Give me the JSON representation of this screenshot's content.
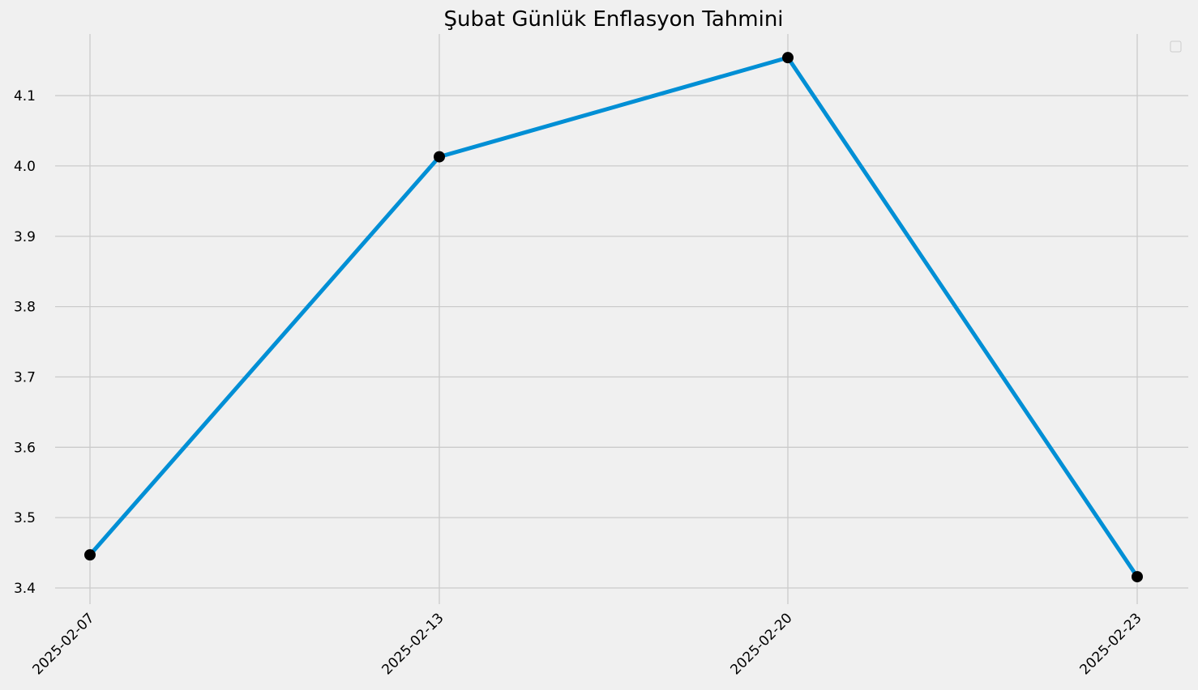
{
  "chart_data": {
    "type": "line",
    "title": "Şubat Günlük Enflasyon Tahmini",
    "xlabel": "",
    "ylabel": "",
    "x": [
      "2025-02-07",
      "2025-02-13",
      "2025-02-20",
      "2025-02-23"
    ],
    "series": [
      {
        "values": [
          3.447,
          4.013,
          4.154,
          3.416
        ],
        "color": "#008fd5",
        "marker_color": "#000000"
      }
    ],
    "x_ticks": [
      "2025-02-07",
      "2025-02-13",
      "2025-02-20",
      "2025-02-23"
    ],
    "y_ticks": [
      "3.4",
      "3.5",
      "3.6",
      "3.7",
      "3.8",
      "3.9",
      "4.0",
      "4.1"
    ],
    "ylim": [
      3.38,
      4.19
    ],
    "grid": true,
    "legend": {
      "placement": "top-right",
      "entries": []
    }
  }
}
